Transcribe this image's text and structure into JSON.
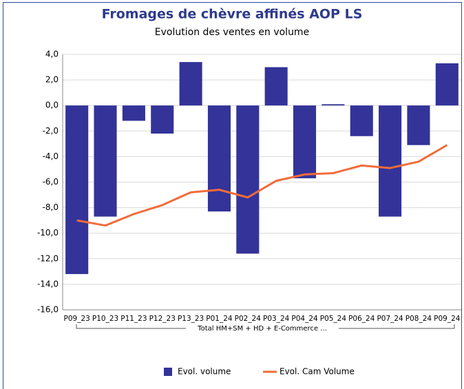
{
  "chart_data": {
    "type": "bar_line",
    "title": "Fromages de chèvre affinés AOP LS",
    "subtitle": "Evolution des ventes en volume",
    "group_label": "Total HM+SM + HD + E-Commerce ...",
    "categories": [
      "P09_23",
      "P10_23",
      "P11_23",
      "P12_23",
      "P13_23",
      "P01_24",
      "P02_24",
      "P03_24",
      "P04_24",
      "P05_24",
      "P06_24",
      "P07_24",
      "P08_24",
      "P09_24"
    ],
    "series": [
      {
        "name": "Evol. volume",
        "type": "bar",
        "color": "#333399",
        "values": [
          -13.2,
          -8.7,
          -1.2,
          -2.2,
          3.4,
          -8.3,
          -11.6,
          3.0,
          -5.7,
          0.1,
          -2.4,
          -8.7,
          -3.1,
          3.3
        ]
      },
      {
        "name": "Evol. Cam Volume",
        "type": "line",
        "color": "#f26b3a",
        "values": [
          -9.0,
          -9.4,
          -8.5,
          -7.8,
          -6.8,
          -6.6,
          -7.2,
          -5.9,
          -5.4,
          -5.3,
          -4.7,
          -4.9,
          -4.4,
          -3.1
        ]
      }
    ],
    "ylim": [
      -16,
      4
    ],
    "yticks": [
      {
        "value": -16,
        "label": "-16,0"
      },
      {
        "value": -14,
        "label": "-14,0"
      },
      {
        "value": -12,
        "label": "-12,0"
      },
      {
        "value": -10,
        "label": "-10,0"
      },
      {
        "value": -8,
        "label": "-8,0"
      },
      {
        "value": -6,
        "label": "-6,0"
      },
      {
        "value": -4,
        "label": "-4,0"
      },
      {
        "value": -2,
        "label": "-2,0"
      },
      {
        "value": 0,
        "label": "0,0"
      },
      {
        "value": 2,
        "label": "2,0"
      },
      {
        "value": 4,
        "label": "4,0"
      }
    ],
    "grid": true,
    "legend": "bottom"
  }
}
